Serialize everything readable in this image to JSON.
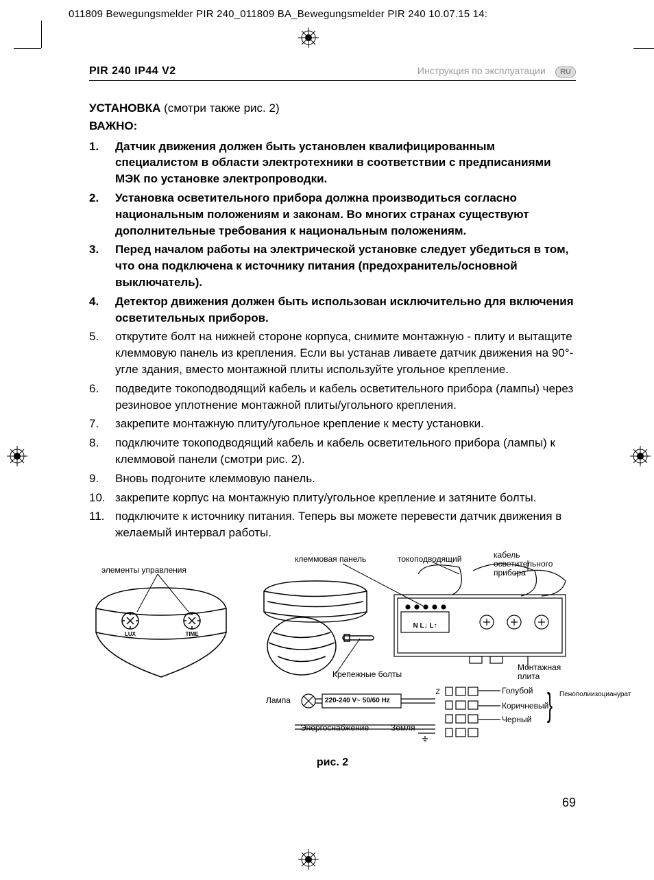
{
  "print_header": "011809 Bewegungsmelder PIR 240_011809 BA_Bewegungsmelder PIR 240  10.07.15  14:",
  "header": {
    "model": "PIR 240 IP44 V2",
    "doc_label": "Инструкция по эксплуатации",
    "lang": "RU"
  },
  "section": {
    "title_bold": "УСТАНОВКА",
    "title_rest": " (смотри также рис. 2)",
    "important": "ВАЖНО:"
  },
  "list": [
    {
      "bold": true,
      "text": "Датчик движения должен быть установлен квалифицированным специалистом в области электротехники в соответствии с предписаниями МЭК по установке электропроводки."
    },
    {
      "bold": true,
      "text": "Установка осветительного прибора должна производиться согласно национальным положениям и законам. Во многих странах существуют дополнительные требования к национальным положениям."
    },
    {
      "bold": true,
      "text": "Перед началом работы на электрической установке следует убедиться в том, что она подключена к источнику питания (предохранитель/основной выключатель)."
    },
    {
      "bold": true,
      "text": "Детектор движения должен быть использован исключительно для включения осветительных приборов."
    },
    {
      "bold": false,
      "text": "открутите болт на нижней стороне корпуса, снимите монтажную - плиту и вытащите клеммовую панель из крепления. Если вы устанав ливаете датчик движения на 90°-угле здания, вместо монтажной плиты используйте угольное крепление."
    },
    {
      "bold": false,
      "text": "подведите токоподводящий кабель и кабель осветительного прибора (лампы) через резиновое уплотнение монтажной плиты/угольного крепления."
    },
    {
      "bold": false,
      "text": "закрепите монтажную плиту/угольное крепление к месту установки."
    },
    {
      "bold": false,
      "text": "подключите токоподводящий кабель и кабель осветительного прибора (лампы) к клеммовой панели (смотри рис. 2)."
    },
    {
      "bold": false,
      "text": "Вновь подгоните клеммовую панель."
    },
    {
      "bold": false,
      "text": "закрепите корпус на монтажную плиту/угольное крепление и затяните болты."
    },
    {
      "bold": false,
      "text": "подключите к источнику питания. Теперь вы можете перевести датчик движения в желаемый интервал работы."
    }
  ],
  "figure": {
    "caption": "рис. 2",
    "labels": {
      "controls": "элементы управления",
      "terminal": "клеммовая панель",
      "supply_cable": "токоподводящий",
      "lamp_cable": "кабель осветительного прибора",
      "bolts": "Крепежные болты",
      "mount_plate": "Монтажная плита",
      "lamp": "Лампа",
      "voltage": "220-240 V~  50/60 Hz",
      "power_supply": "Энергоснабжение",
      "earth": "Земля",
      "blue": "Голубой",
      "brown": "Коричневый",
      "black": "Черный",
      "foam": "Пенополиизоцианурат",
      "lux": "LUX",
      "time": "TIME",
      "terminals_text": "N L↓ L↑"
    }
  },
  "page_number": "69"
}
